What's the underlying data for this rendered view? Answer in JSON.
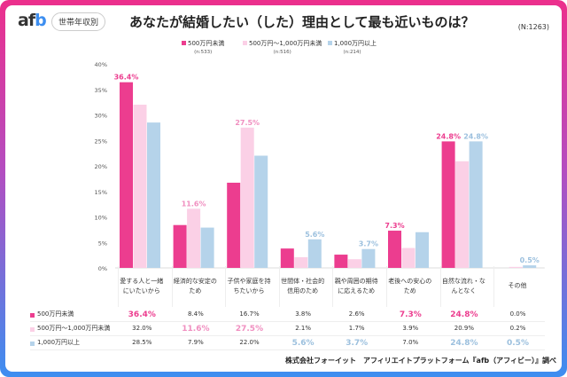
{
  "header": {
    "logo": "afb",
    "tag": "世帯年収別",
    "title": "あなたが結婚したい（した）理由として最も近いものは？",
    "n_total": "(N:1263)"
  },
  "source": "株式会社フォーイット　アフィリエイトプラットフォーム『afb（アフィビー）』調べ",
  "chart_data": {
    "type": "bar",
    "categories": [
      "愛する人と一緒にいたいから",
      "経済的な安定のため",
      "子供や家庭を持ちたいから",
      "世間体・社会的信用のため",
      "親や周囲の期待に応えるため",
      "老後への安心のため",
      "自然な流れ・なんとなく",
      "その他"
    ],
    "series": [
      {
        "name": "500万円未満",
        "n": "(n:533)",
        "color": "#ec3d8f",
        "values": [
          36.4,
          8.4,
          16.7,
          3.8,
          2.6,
          7.3,
          24.8,
          0.0
        ],
        "labels": [
          "36.4%",
          "8.4%",
          "16.7%",
          "3.8%",
          "2.6%",
          "7.3%",
          "24.8%",
          "0.0%"
        ],
        "highlight": [
          0,
          5,
          6
        ]
      },
      {
        "name": "500万円～1,000万円未満",
        "n": "(n:516)",
        "color": "#fbd0e6",
        "text_color": "#f08fc0",
        "values": [
          32.0,
          11.6,
          27.5,
          2.1,
          1.7,
          3.9,
          20.9,
          0.2
        ],
        "labels": [
          "32.0%",
          "11.6%",
          "27.5%",
          "2.1%",
          "1.7%",
          "3.9%",
          "20.9%",
          "0.2%"
        ],
        "highlight": [
          1,
          2
        ]
      },
      {
        "name": "1,000万円以上",
        "n": "(n:214)",
        "color": "#b5d3ea",
        "text_color": "#9cc0de",
        "values": [
          28.5,
          7.9,
          22.0,
          5.6,
          3.7,
          7.0,
          24.8,
          0.5
        ],
        "labels": [
          "28.5%",
          "7.9%",
          "22.0%",
          "5.6%",
          "3.7%",
          "7.0%",
          "24.8%",
          "0.5%"
        ],
        "highlight": [
          3,
          4,
          6,
          7
        ]
      }
    ],
    "ylim": [
      0,
      40
    ],
    "yticks": [
      "0%",
      "5%",
      "10%",
      "15%",
      "20%",
      "25%",
      "30%",
      "35%",
      "40%"
    ],
    "grid": false,
    "legend": "top"
  }
}
